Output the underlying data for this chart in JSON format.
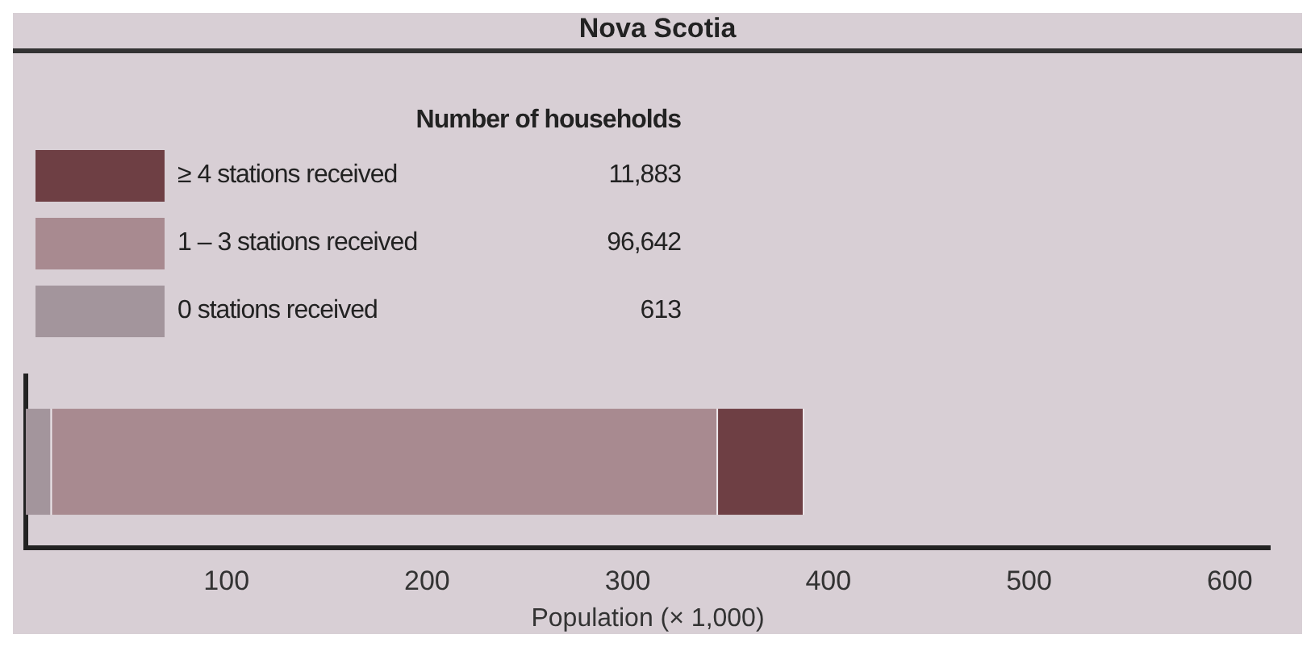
{
  "chart_data": {
    "type": "bar",
    "title": "Nova Scotia",
    "orientation": "horizontal",
    "stacked": true,
    "categories": [
      null
    ],
    "series": [
      {
        "name": "0 stations received",
        "color": "#a3959c",
        "values": [
          13
        ]
      },
      {
        "name": "1 – 3 stations received",
        "color": "#a88a90",
        "values": [
          332
        ]
      },
      {
        "name": "≥ 4 stations received",
        "color": "#6e3f44",
        "values": [
          43
        ]
      }
    ],
    "legend_title": "Number of households",
    "annotations": [
      "613",
      "96,642",
      "11,883"
    ],
    "xlabel": "Population (× 1,000)",
    "xlim": [
      0,
      620
    ],
    "xticks": [
      100,
      200,
      300,
      400,
      500,
      600
    ],
    "legend": "top left",
    "tick_labels": "x",
    "grid": false
  }
}
